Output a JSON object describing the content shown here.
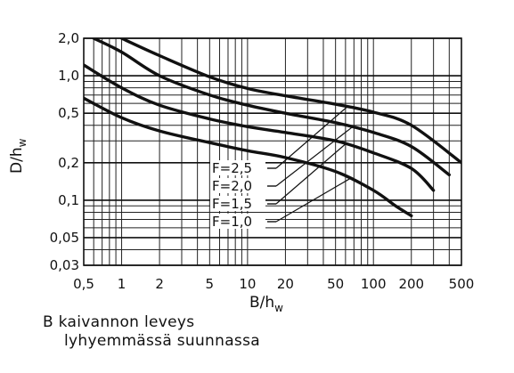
{
  "chart_data": {
    "type": "line",
    "x_scale": "log",
    "y_scale": "log",
    "xlim": [
      0.5,
      500
    ],
    "ylim": [
      0.03,
      2.0
    ],
    "grid": true,
    "xlabel": {
      "main": "B/h",
      "sub": "w"
    },
    "ylabel": {
      "main": "D/h",
      "sub": "w"
    },
    "x_ticks": [
      {
        "value": 0.5,
        "label": "0,5"
      },
      {
        "value": 1,
        "label": "1"
      },
      {
        "value": 2,
        "label": "2"
      },
      {
        "value": 5,
        "label": "5"
      },
      {
        "value": 10,
        "label": "10"
      },
      {
        "value": 20,
        "label": "20"
      },
      {
        "value": 50,
        "label": "50"
      },
      {
        "value": 100,
        "label": "100"
      },
      {
        "value": 200,
        "label": "200"
      },
      {
        "value": 500,
        "label": "500"
      }
    ],
    "y_ticks": [
      {
        "value": 2.0,
        "label": "2,0"
      },
      {
        "value": 1.0,
        "label": "1,0"
      },
      {
        "value": 0.5,
        "label": "0,5"
      },
      {
        "value": 0.2,
        "label": "0,2"
      },
      {
        "value": 0.1,
        "label": "0,1"
      },
      {
        "value": 0.05,
        "label": "0,05"
      },
      {
        "value": 0.03,
        "label": "0,03"
      }
    ],
    "series": [
      {
        "name": "F=2,5",
        "x": [
          1,
          2,
          5,
          10,
          20,
          50,
          100,
          200,
          500
        ],
        "y": [
          2.0,
          1.45,
          0.98,
          0.79,
          0.69,
          0.59,
          0.51,
          0.4,
          0.2
        ]
      },
      {
        "name": "F=2,0",
        "x": [
          0.6,
          1,
          2,
          5,
          10,
          20,
          50,
          100,
          200,
          400
        ],
        "y": [
          2.0,
          1.55,
          1.0,
          0.7,
          0.58,
          0.5,
          0.42,
          0.35,
          0.27,
          0.16
        ]
      },
      {
        "name": "F=1,5",
        "x": [
          0.5,
          1,
          2,
          5,
          10,
          20,
          50,
          100,
          200,
          300
        ],
        "y": [
          1.22,
          0.8,
          0.58,
          0.45,
          0.39,
          0.35,
          0.3,
          0.24,
          0.18,
          0.12
        ]
      },
      {
        "name": "F=1,0",
        "x": [
          0.5,
          1,
          2,
          5,
          10,
          20,
          50,
          100,
          150,
          200
        ],
        "y": [
          0.66,
          0.46,
          0.36,
          0.29,
          0.25,
          0.22,
          0.17,
          0.12,
          0.09,
          0.075
        ]
      }
    ]
  },
  "caption": {
    "line1": "B  kaivannon leveys",
    "line2": "lyhyemmässä suunnassa"
  }
}
